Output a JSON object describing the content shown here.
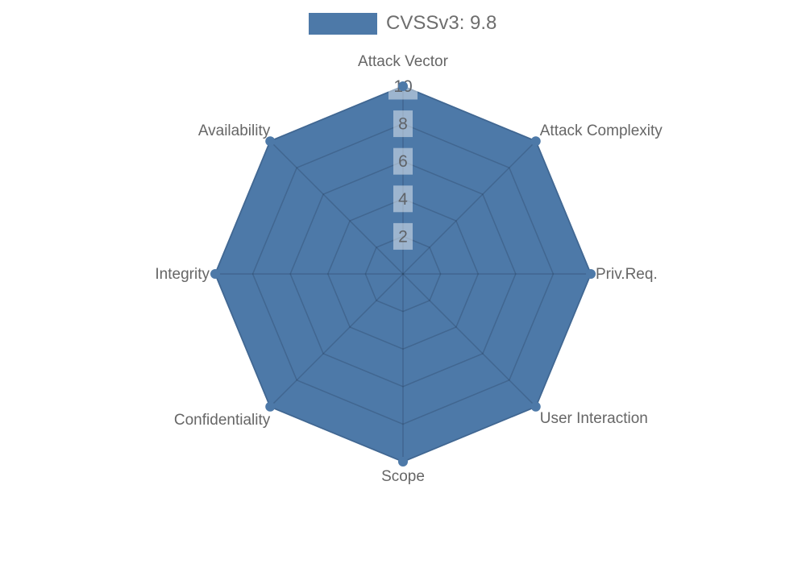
{
  "legend": {
    "label": "CVSSv3: 9.8",
    "swatch_color": "#4d79a8"
  },
  "chart_data": {
    "type": "radar",
    "title": "CVSSv3: 9.8",
    "categories": [
      "Attack Vector",
      "Attack Complexity",
      "Priv.Req.",
      "User Interaction",
      "Scope",
      "Confidentiality",
      "Integrity",
      "Availability"
    ],
    "series": [
      {
        "name": "CVSSv3: 9.8",
        "values": [
          10,
          10,
          10,
          10,
          10,
          10,
          10,
          10
        ]
      }
    ],
    "rlim": [
      0,
      10
    ],
    "ticks": [
      2,
      4,
      6,
      8,
      10
    ],
    "grid": true,
    "legend_position": "top-center",
    "fill_color": "#4d79a8",
    "grid_color": "rgba(25,35,60,0.22)",
    "label_color": "#666666",
    "tick_text_color": "#5f6368",
    "tick_box_color": "rgba(255,255,255,0.45)"
  }
}
